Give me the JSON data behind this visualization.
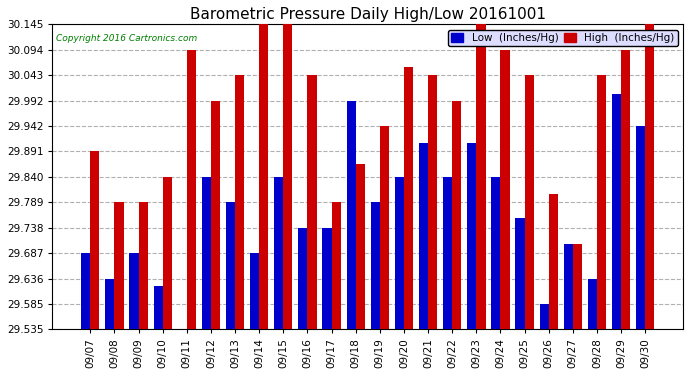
{
  "title": "Barometric Pressure Daily High/Low 20161001",
  "copyright": "Copyright 2016 Cartronics.com",
  "dates": [
    "09/07",
    "09/08",
    "09/09",
    "09/10",
    "09/11",
    "09/12",
    "09/13",
    "09/14",
    "09/15",
    "09/16",
    "09/17",
    "09/18",
    "09/19",
    "09/20",
    "09/21",
    "09/22",
    "09/23",
    "09/24",
    "09/25",
    "09/26",
    "09/27",
    "09/28",
    "09/29",
    "09/30"
  ],
  "low_values": [
    29.687,
    29.636,
    29.687,
    29.621,
    29.535,
    29.84,
    29.789,
    29.687,
    29.84,
    29.738,
    29.738,
    29.992,
    29.789,
    29.84,
    29.908,
    29.84,
    29.908,
    29.84,
    29.757,
    29.585,
    29.706,
    29.636,
    30.005,
    29.942
  ],
  "high_values": [
    29.891,
    29.789,
    29.789,
    29.84,
    30.094,
    29.992,
    30.043,
    30.145,
    30.145,
    30.043,
    29.789,
    29.865,
    29.942,
    30.06,
    30.043,
    29.992,
    30.145,
    30.094,
    30.043,
    29.806,
    29.706,
    30.043,
    30.094,
    30.145
  ],
  "ymin": 29.535,
  "ymax": 30.145,
  "yticks": [
    29.535,
    29.585,
    29.636,
    29.687,
    29.738,
    29.789,
    29.84,
    29.891,
    29.942,
    29.992,
    30.043,
    30.094,
    30.145
  ],
  "low_color": "#0000cc",
  "high_color": "#cc0000",
  "bg_color": "#ffffff",
  "grid_color": "#b0b0b0",
  "bar_width": 0.38,
  "title_fontsize": 11,
  "tick_fontsize": 7.5,
  "legend_low_label": "Low  (Inches/Hg)",
  "legend_high_label": "High  (Inches/Hg)"
}
